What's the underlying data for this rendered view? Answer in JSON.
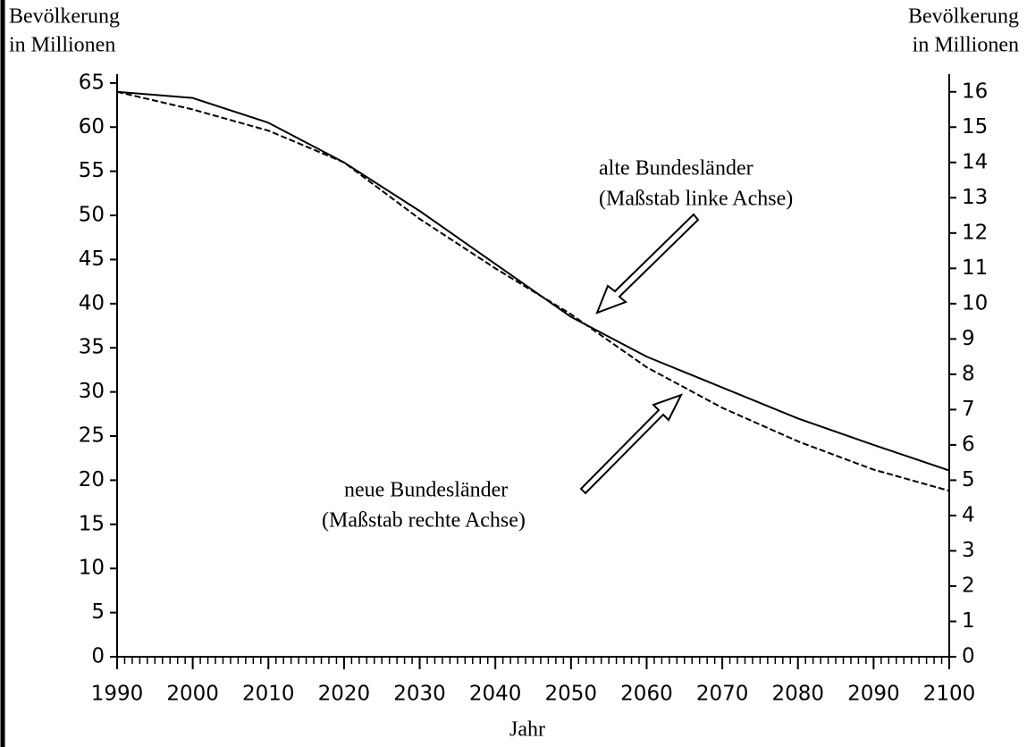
{
  "chart_data": {
    "type": "line",
    "y_label": [
      "Bevölkerung",
      "in Millionen"
    ],
    "y2_label": [
      "Bevölkerung",
      "in Millionen"
    ],
    "x_label": "Jahr",
    "x": [
      1990,
      2000,
      2010,
      2020,
      2030,
      2040,
      2050,
      2060,
      2070,
      2080,
      2090,
      2100
    ],
    "series": [
      {
        "name": "alte Bundesländer",
        "color": "#000000",
        "dash": false,
        "values": [
          64,
          63.3,
          60.5,
          56,
          50.5,
          44.5,
          38.5,
          34,
          30.5,
          27,
          24,
          21.1
        ]
      },
      {
        "name": "neue Bundesländer",
        "color": "#000000",
        "dash": true,
        "axis": "y2",
        "values": [
          16,
          15.5,
          14.9,
          14,
          12.4,
          11,
          9.7,
          8.2,
          7.05,
          6.1,
          5.3,
          4.7
        ]
      }
    ],
    "annotations": [
      [
        "alte Bundesländer",
        "(Maßstab linke Achse)"
      ],
      [
        "neue Bundesländer",
        "(Maßstab rechte Achse)"
      ]
    ],
    "xlim": [
      1990,
      2100
    ],
    "xticks": [
      1990,
      2000,
      2010,
      2020,
      2030,
      2040,
      2050,
      2060,
      2070,
      2080,
      2090,
      2100
    ],
    "xminor_step": 1,
    "ylim": [
      0,
      66
    ],
    "yticks": [
      0,
      5,
      10,
      15,
      20,
      25,
      30,
      35,
      40,
      45,
      50,
      55,
      60,
      65
    ],
    "y2lim": [
      0,
      16.5
    ],
    "y2ticks": [
      0,
      1,
      2,
      3,
      4,
      5,
      6,
      7,
      8,
      9,
      10,
      11,
      12,
      13,
      14,
      15,
      16
    ]
  }
}
